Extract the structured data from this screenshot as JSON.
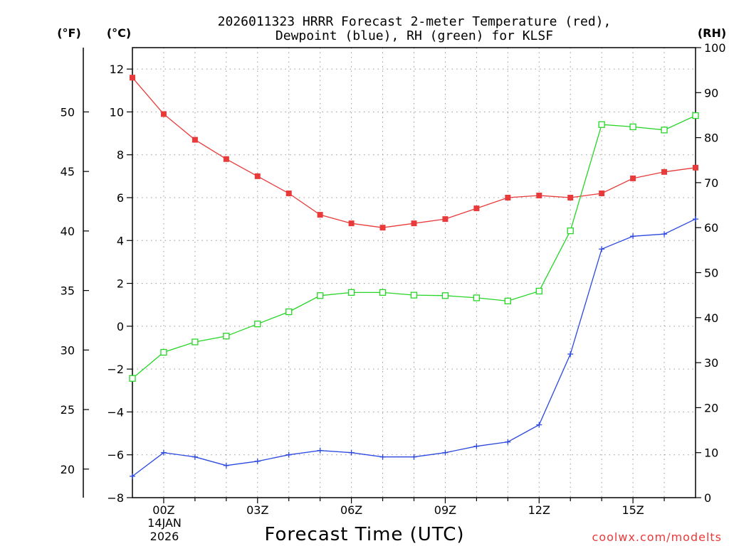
{
  "chart_data": {
    "type": "line",
    "title_line1": "2026011323 HRRR Forecast 2-meter Temperature (red),",
    "title_line2": "Dewpoint (blue), RH (green) for KLSF",
    "xlabel": "Forecast Time (UTC)",
    "date_label_line1": "14JAN",
    "date_label_line2": "2026",
    "unit_f": "(°F)",
    "unit_c": "(°C)",
    "unit_rh": "(RH)",
    "credit": "coolwx.com/modelts",
    "x_hours": [
      -1,
      0,
      1,
      2,
      3,
      4,
      5,
      6,
      7,
      8,
      9,
      10,
      11,
      12,
      13,
      14,
      15,
      16,
      17
    ],
    "x_range": [
      -1,
      17
    ],
    "x_tick_hours": [
      0,
      3,
      6,
      9,
      12,
      15
    ],
    "x_tick_labels": [
      "00Z",
      "03Z",
      "06Z",
      "09Z",
      "12Z",
      "15Z"
    ],
    "ylim_c": [
      -8,
      13
    ],
    "y_ticks_c": [
      -8,
      -6,
      -4,
      -2,
      0,
      2,
      4,
      6,
      8,
      10,
      12
    ],
    "y_ticks_f": [
      20,
      25,
      30,
      35,
      40,
      45,
      50
    ],
    "ylim_rh": [
      0,
      100
    ],
    "y_ticks_rh": [
      0,
      10,
      20,
      30,
      40,
      50,
      60,
      70,
      80,
      90,
      100
    ],
    "series": [
      {
        "name": "Temperature",
        "unit": "C",
        "axis": "left",
        "color": "#e83a3a",
        "marker": "filled-square",
        "values": [
          11.6,
          9.9,
          8.7,
          7.8,
          7.0,
          6.2,
          5.2,
          4.8,
          4.6,
          4.8,
          5.0,
          5.5,
          6.0,
          6.1,
          6.0,
          6.2,
          6.9,
          7.2,
          7.4
        ]
      },
      {
        "name": "Dewpoint",
        "unit": "C",
        "axis": "left",
        "color": "#2b48e0",
        "marker": "plus",
        "values": [
          -7.0,
          -5.9,
          -6.1,
          -6.5,
          -6.3,
          -6.0,
          -5.8,
          -5.9,
          -6.1,
          -6.1,
          -5.9,
          -5.6,
          -5.4,
          -4.6,
          -1.3,
          3.6,
          4.2,
          4.3,
          5.0
        ]
      },
      {
        "name": "RH",
        "unit": "%",
        "axis": "right",
        "color": "#26d526",
        "marker": "open-square",
        "values": [
          26.5,
          32.3,
          34.6,
          35.9,
          38.6,
          41.3,
          44.9,
          45.6,
          45.6,
          45.0,
          44.9,
          44.4,
          43.7,
          45.9,
          59.3,
          82.9,
          82.4,
          81.7,
          84.9
        ]
      }
    ]
  }
}
